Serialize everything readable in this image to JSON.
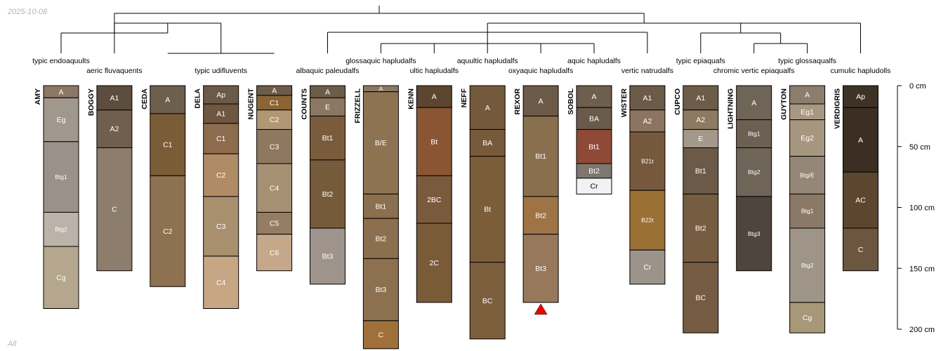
{
  "chart_data": {
    "type": "soil-profile-sketch with dendrogram",
    "date": "2025-10-08",
    "footer_label": "All",
    "depth_axis": {
      "unit": "cm",
      "max": 200,
      "ticks": [
        {
          "value": 0,
          "label": "0 cm"
        },
        {
          "value": 50,
          "label": "50 cm"
        },
        {
          "value": 100,
          "label": "100 cm"
        },
        {
          "value": 150,
          "label": "150 cm"
        },
        {
          "value": 200,
          "label": "200 cm"
        }
      ]
    },
    "profiles": [
      {
        "name": "AMY",
        "taxon": "typic endoaquults",
        "horizons": [
          {
            "name": "A",
            "top": 0,
            "bottom": 10,
            "color": "#8b7763"
          },
          {
            "name": "Eg",
            "top": 10,
            "bottom": 46,
            "color": "#a0988c"
          },
          {
            "name": "Btg1",
            "top": 46,
            "bottom": 104,
            "color": "#9a928a"
          },
          {
            "name": "Btg2",
            "top": 104,
            "bottom": 132,
            "color": "#bbb3a9"
          },
          {
            "name": "Cg",
            "top": 132,
            "bottom": 183,
            "color": "#b5a78d"
          }
        ]
      },
      {
        "name": "BOGGY",
        "taxon": "aeric fluvaquents",
        "horizons": [
          {
            "name": "A1",
            "top": 0,
            "bottom": 20,
            "color": "#5c4d3e"
          },
          {
            "name": "A2",
            "top": 20,
            "bottom": 51,
            "color": "#705e4e"
          },
          {
            "name": "C",
            "top": 51,
            "bottom": 152,
            "color": "#8c7d6d"
          }
        ]
      },
      {
        "name": "CEDA",
        "taxon": "",
        "horizons": [
          {
            "name": "A",
            "top": 0,
            "bottom": 23,
            "color": "#6e5e4e"
          },
          {
            "name": "C1",
            "top": 23,
            "bottom": 74,
            "color": "#7a5c36"
          },
          {
            "name": "C2",
            "top": 74,
            "bottom": 165,
            "color": "#8e7150"
          }
        ]
      },
      {
        "name": "DELA",
        "taxon": "typic udifluvents",
        "horizons": [
          {
            "name": "Ap",
            "top": 0,
            "bottom": 15,
            "color": "#6c5a48"
          },
          {
            "name": "A1",
            "top": 15,
            "bottom": 31,
            "color": "#6e5640"
          },
          {
            "name": "C1",
            "top": 31,
            "bottom": 56,
            "color": "#8d6c4d"
          },
          {
            "name": "C2",
            "top": 56,
            "bottom": 91,
            "color": "#b08c66"
          },
          {
            "name": "C3",
            "top": 91,
            "bottom": 140,
            "color": "#a8906e"
          },
          {
            "name": "C4",
            "top": 140,
            "bottom": 183,
            "color": "#c6a683"
          }
        ]
      },
      {
        "name": "NUGENT",
        "taxon": "",
        "horizons": [
          {
            "name": "A",
            "top": 0,
            "bottom": 8,
            "color": "#6e5c48"
          },
          {
            "name": "C1",
            "top": 8,
            "bottom": 20,
            "color": "#8a6434"
          },
          {
            "name": "C2",
            "top": 20,
            "bottom": 36,
            "color": "#b29774"
          },
          {
            "name": "C3",
            "top": 36,
            "bottom": 64,
            "color": "#8e7860"
          },
          {
            "name": "C4",
            "top": 64,
            "bottom": 104,
            "color": "#a69073"
          },
          {
            "name": "C5",
            "top": 104,
            "bottom": 122,
            "color": "#957d63"
          },
          {
            "name": "C6",
            "top": 122,
            "bottom": 152,
            "color": "#c4a889"
          }
        ]
      },
      {
        "name": "COUNTS",
        "taxon": "albaquic paleudalfs",
        "horizons": [
          {
            "name": "A",
            "top": 0,
            "bottom": 10,
            "color": "#6e5c4b"
          },
          {
            "name": "E",
            "top": 10,
            "bottom": 25,
            "color": "#8b7762"
          },
          {
            "name": "Bt1",
            "top": 25,
            "bottom": 61,
            "color": "#7a5c3c"
          },
          {
            "name": "Bt2",
            "top": 61,
            "bottom": 117,
            "color": "#765b3a"
          },
          {
            "name": "Bt3",
            "top": 117,
            "bottom": 163,
            "color": "#9e948b"
          }
        ]
      },
      {
        "name": "FRIZZELL",
        "taxon": "glossaquic hapludalfs",
        "horizons": [
          {
            "name": "A",
            "top": 0,
            "bottom": 5,
            "color": "#8c7862"
          },
          {
            "name": "B/E",
            "top": 5,
            "bottom": 89,
            "color": "#8d7352"
          },
          {
            "name": "Bt1",
            "top": 89,
            "bottom": 109,
            "color": "#8b6f4e"
          },
          {
            "name": "Bt2",
            "top": 109,
            "bottom": 142,
            "color": "#8b6f4e"
          },
          {
            "name": "Bt3",
            "top": 142,
            "bottom": 193,
            "color": "#8c704f"
          },
          {
            "name": "C",
            "top": 193,
            "bottom": 216,
            "color": "#a0703a"
          }
        ]
      },
      {
        "name": "KENN",
        "taxon": "ultic hapludalfs",
        "horizons": [
          {
            "name": "A",
            "top": 0,
            "bottom": 18,
            "color": "#5c4630"
          },
          {
            "name": "Bt",
            "top": 18,
            "bottom": 74,
            "color": "#8a5532"
          },
          {
            "name": "2BC",
            "top": 74,
            "bottom": 113,
            "color": "#7a5a3c"
          },
          {
            "name": "2C",
            "top": 113,
            "bottom": 178,
            "color": "#7a5b38"
          }
        ]
      },
      {
        "name": "NEFF",
        "taxon": "aquultic hapludalfs",
        "horizons": [
          {
            "name": "A",
            "top": 0,
            "bottom": 36,
            "color": "#74593c"
          },
          {
            "name": "BA",
            "top": 36,
            "bottom": 58,
            "color": "#775a3a"
          },
          {
            "name": "Bt",
            "top": 58,
            "bottom": 145,
            "color": "#7b5d3a"
          },
          {
            "name": "BC",
            "top": 145,
            "bottom": 208,
            "color": "#7d5f3e"
          }
        ]
      },
      {
        "name": "REXOR",
        "taxon": "oxyaquic hapludalfs",
        "horizons": [
          {
            "name": "A",
            "top": 0,
            "bottom": 25,
            "color": "#6c5a48"
          },
          {
            "name": "Bt1",
            "top": 25,
            "bottom": 91,
            "color": "#8a6f4e"
          },
          {
            "name": "Bt2",
            "top": 91,
            "bottom": 122,
            "color": "#9e7446"
          },
          {
            "name": "Bt3",
            "top": 122,
            "bottom": 178,
            "color": "#97785a"
          }
        ]
      },
      {
        "name": "SOBOL",
        "taxon": "aquic hapludalfs",
        "horizons": [
          {
            "name": "A",
            "top": 0,
            "bottom": 18,
            "color": "#6e5e4e"
          },
          {
            "name": "BA",
            "top": 18,
            "bottom": 36,
            "color": "#6a5a4b"
          },
          {
            "name": "Bt1",
            "top": 36,
            "bottom": 64,
            "color": "#8e4a36"
          },
          {
            "name": "Bt2",
            "top": 64,
            "bottom": 76,
            "color": "#807670"
          },
          {
            "name": "Cr",
            "top": 76,
            "bottom": 89,
            "color": "#f2f2f2"
          }
        ]
      },
      {
        "name": "WISTER",
        "taxon": "vertic natrudalfs",
        "horizons": [
          {
            "name": "A1",
            "top": 0,
            "bottom": 20,
            "color": "#6c5a48"
          },
          {
            "name": "A2",
            "top": 20,
            "bottom": 38,
            "color": "#8b7561"
          },
          {
            "name": "B21t",
            "top": 38,
            "bottom": 86,
            "color": "#76593c"
          },
          {
            "name": "B22t",
            "top": 86,
            "bottom": 135,
            "color": "#9a7034"
          },
          {
            "name": "Cr",
            "top": 135,
            "bottom": 163,
            "color": "#9c948a"
          }
        ]
      },
      {
        "name": "CUPCO",
        "taxon": "typic epiaquafs",
        "horizons": [
          {
            "name": "A1",
            "top": 0,
            "bottom": 20,
            "color": "#6c5c48"
          },
          {
            "name": "A2",
            "top": 20,
            "bottom": 36,
            "color": "#8d7a63"
          },
          {
            "name": "E",
            "top": 36,
            "bottom": 51,
            "color": "#a3998b"
          },
          {
            "name": "Bt1",
            "top": 51,
            "bottom": 89,
            "color": "#6c5a48"
          },
          {
            "name": "Bt2",
            "top": 89,
            "bottom": 145,
            "color": "#765c40"
          },
          {
            "name": "BC",
            "top": 145,
            "bottom": 203,
            "color": "#755b41"
          }
        ]
      },
      {
        "name": "LIGHTNING",
        "taxon": "chromic vertic epiaqualfs",
        "horizons": [
          {
            "name": "A",
            "top": 0,
            "bottom": 28,
            "color": "#6e6558"
          },
          {
            "name": "Btg1",
            "top": 28,
            "bottom": 51,
            "color": "#6c6052"
          },
          {
            "name": "Btg2",
            "top": 51,
            "bottom": 91,
            "color": "#6e6558"
          },
          {
            "name": "Btg3",
            "top": 91,
            "bottom": 152,
            "color": "#4e463e"
          }
        ]
      },
      {
        "name": "GUYTON",
        "taxon": "typic glossaqualfs",
        "horizons": [
          {
            "name": "A",
            "top": 0,
            "bottom": 15,
            "color": "#8c7d6d"
          },
          {
            "name": "Eg1",
            "top": 15,
            "bottom": 28,
            "color": "#a89882"
          },
          {
            "name": "Eg2",
            "top": 28,
            "bottom": 58,
            "color": "#a69680"
          },
          {
            "name": "Btg/E",
            "top": 58,
            "bottom": 89,
            "color": "#948778"
          },
          {
            "name": "Btg1",
            "top": 89,
            "bottom": 117,
            "color": "#8b7967"
          },
          {
            "name": "Btg2",
            "top": 117,
            "bottom": 178,
            "color": "#9e9588"
          },
          {
            "name": "Cg",
            "top": 178,
            "bottom": 203,
            "color": "#a69878"
          }
        ]
      },
      {
        "name": "VERDIGRIS",
        "taxon": "cumulic hapludolls",
        "horizons": [
          {
            "name": "Ap",
            "top": 0,
            "bottom": 18,
            "color": "#3e3226"
          },
          {
            "name": "A",
            "top": 18,
            "bottom": 71,
            "color": "#3c2e22"
          },
          {
            "name": "AC",
            "top": 71,
            "bottom": 117,
            "color": "#5c4630"
          },
          {
            "name": "C",
            "top": 117,
            "bottom": 152,
            "color": "#6c5640"
          }
        ]
      }
    ],
    "annotations": [
      {
        "profile": "REXOR",
        "marker": "red-triangle",
        "depth": 178
      }
    ]
  }
}
